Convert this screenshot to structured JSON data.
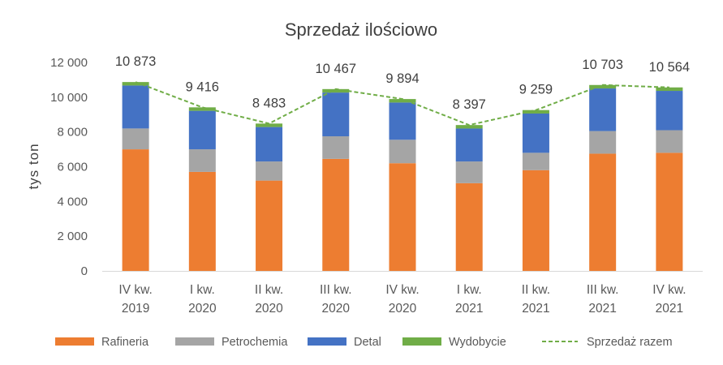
{
  "chart_data": {
    "type": "bar",
    "stacked": true,
    "title": "Sprzedaż ilościowo",
    "ylabel": "tys ton",
    "xlabel": "",
    "ylim": [
      0,
      12000
    ],
    "yticks": [
      0,
      2000,
      4000,
      6000,
      8000,
      10000,
      12000
    ],
    "ytick_labels": [
      "0",
      "2 000",
      "4 000",
      "6 000",
      "8 000",
      "10 000",
      "12 000"
    ],
    "grid": false,
    "legend_position": "bottom",
    "categories": [
      [
        "IV kw.",
        "2019"
      ],
      [
        "I kw.",
        "2020"
      ],
      [
        "II kw.",
        "2020"
      ],
      [
        "III kw.",
        "2020"
      ],
      [
        "IV kw.",
        "2020"
      ],
      [
        "I kw.",
        "2021"
      ],
      [
        "II kw.",
        "2021"
      ],
      [
        "III kw.",
        "2021"
      ],
      [
        "IV kw.",
        "2021"
      ]
    ],
    "series": [
      {
        "name": "Rafineria",
        "color": "#ED7D31",
        "values": [
          7000,
          5700,
          5200,
          6450,
          6200,
          5050,
          5800,
          6750,
          6800
        ]
      },
      {
        "name": "Petrochemia",
        "color": "#A5A5A5",
        "values": [
          1200,
          1300,
          1100,
          1300,
          1350,
          1250,
          1000,
          1300,
          1300
        ]
      },
      {
        "name": "Detal",
        "color": "#4472C4",
        "values": [
          2473,
          2216,
          1983,
          2517,
          2144,
          1897,
          2259,
          2453,
          2264
        ]
      },
      {
        "name": "Wydobycie",
        "color": "#70AD47",
        "values": [
          200,
          200,
          200,
          200,
          200,
          200,
          200,
          200,
          200
        ]
      }
    ],
    "total_line": {
      "name": "Sprzedaż razem",
      "color": "#70AD47",
      "style": "dashed",
      "values": [
        10873,
        9416,
        8483,
        10467,
        9894,
        8397,
        9259,
        10703,
        10564
      ],
      "labels": [
        "10 873",
        "9 416",
        "8 483",
        "10 467",
        "9 894",
        "8 397",
        "9 259",
        "10 703",
        "10 564"
      ]
    }
  }
}
